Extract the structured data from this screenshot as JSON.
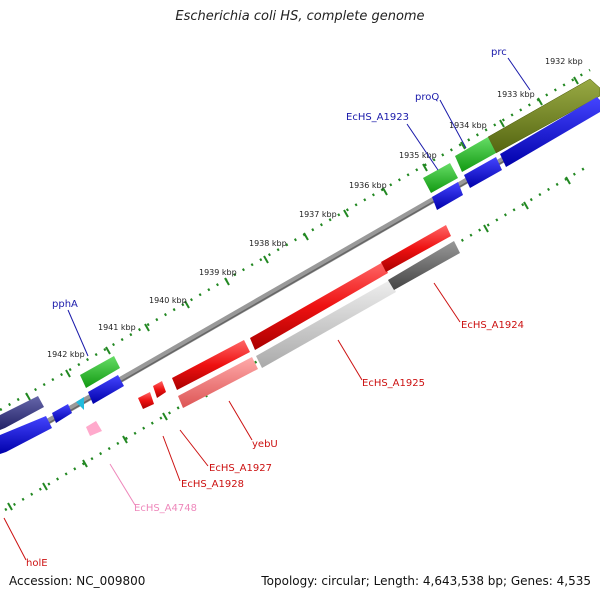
{
  "title": "Escherichia coli HS, complete genome",
  "footer": {
    "accession": "Accession: NC_009800",
    "topology": "Topology: circular; Length: 4,643,538 bp; Genes: 4,535"
  },
  "colors": {
    "forward_gene": "#1010ee",
    "rna_gene": "#22bb22",
    "red_gene": "#ee1111",
    "pink_gene": "#ffaacc",
    "cyan_gene": "#22bbdd",
    "olive_gene": "#778822",
    "navy_gene": "#444488",
    "gray_gene": "#777777",
    "tick_green": "#228822",
    "label_blue": "#1a1aaa",
    "label_red": "#cc1111",
    "label_pink": "#ee88bb"
  },
  "scale": {
    "tick_labels": [
      "1932 kbp",
      "1933 kbp",
      "1934 kbp",
      "1935 kbp",
      "1936 kbp",
      "1937 kbp",
      "1938 kbp",
      "1939 kbp",
      "1940 kbp",
      "1941 kbp",
      "1942 kbp"
    ]
  },
  "gene_labels": [
    {
      "text": "prc",
      "color": "blue"
    },
    {
      "text": "proQ",
      "color": "blue"
    },
    {
      "text": "EcHS_A1923",
      "color": "blue"
    },
    {
      "text": "pphA",
      "color": "blue"
    },
    {
      "text": "EcHS_A1924",
      "color": "red"
    },
    {
      "text": "EcHS_A1925",
      "color": "red"
    },
    {
      "text": "yebU",
      "color": "red"
    },
    {
      "text": "EcHS_A1927",
      "color": "red"
    },
    {
      "text": "EcHS_A1928",
      "color": "red"
    },
    {
      "text": "EcHS_A4748",
      "color": "pink"
    },
    {
      "text": "holE",
      "color": "red"
    }
  ]
}
